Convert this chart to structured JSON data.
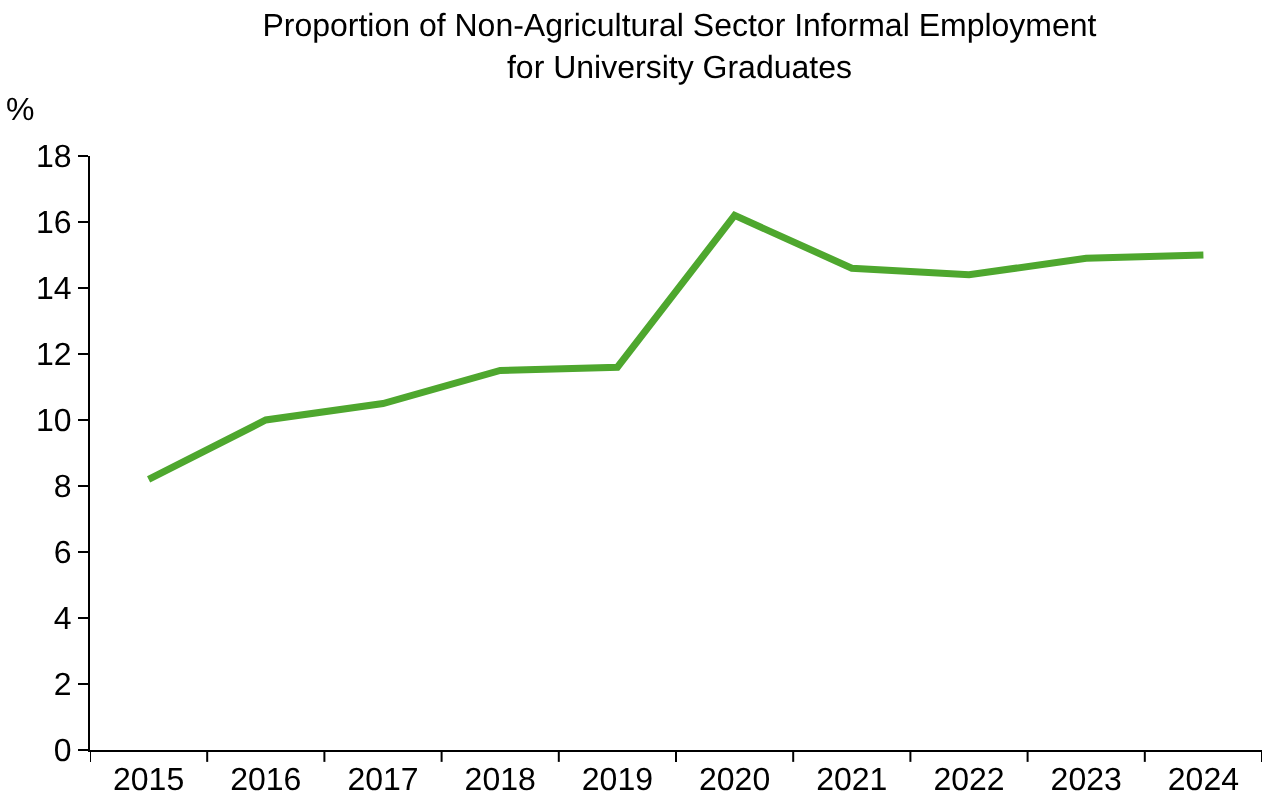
{
  "chart_data": {
    "type": "line",
    "title": "Proportion of Non-Agricultural Sector Informal Employment\nfor University Graduates",
    "ylabel": "%",
    "categories": [
      "2015",
      "2016",
      "2017",
      "2018",
      "2019",
      "2020",
      "2021",
      "2022",
      "2023",
      "2024"
    ],
    "series": [
      {
        "color": "#4ea72e",
        "values": [
          8.2,
          10.0,
          10.5,
          11.5,
          11.6,
          16.2,
          14.6,
          14.4,
          14.9,
          15.0
        ]
      }
    ],
    "ylim": [
      0,
      18
    ],
    "yticks": [
      0,
      2,
      4,
      6,
      8,
      10,
      12,
      14,
      16,
      18
    ],
    "grid": false,
    "marker": "none",
    "line_style": "solid"
  }
}
